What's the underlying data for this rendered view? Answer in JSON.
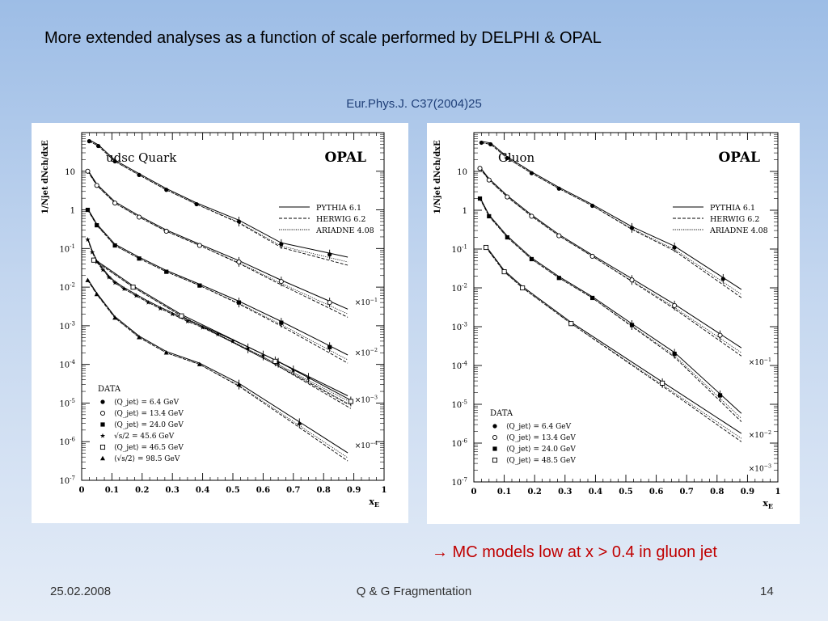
{
  "slide": {
    "title": "More extended analyses as a function of scale performed by DELPHI & OPAL",
    "citation": "Eur.Phys.J. C37(2004)25",
    "conclusion": "→ MC models low at x > 0.4 in gluon jet",
    "footer_date": "25.02.2008",
    "footer_center": "Q & G Fragmentation",
    "footer_page": "14"
  },
  "chart_data": [
    {
      "type": "scatter",
      "panel_label": "udsc Quark",
      "experiment_label": "OPAL",
      "xlabel": "x_E",
      "ylabel": "1/N_jet dN_ch/dx_E",
      "xlim": [
        0,
        1
      ],
      "ylim": [
        1e-07,
        100
      ],
      "yscale": "log",
      "x_ticks": [
        "0",
        "0.1",
        "0.2",
        "0.3",
        "0.4",
        "0.5",
        "0.6",
        "0.7",
        "0.8",
        "0.9",
        "1"
      ],
      "y_ticks": [
        {
          "v": 10.0,
          "label": "10"
        },
        {
          "v": 1.0,
          "label": "1"
        },
        {
          "v": 0.1,
          "label": "10",
          "exp": "-1"
        },
        {
          "v": 0.01,
          "label": "10",
          "exp": "-2"
        },
        {
          "v": 0.001,
          "label": "10",
          "exp": "-3"
        },
        {
          "v": 0.0001,
          "label": "10",
          "exp": "-4"
        },
        {
          "v": 1e-05,
          "label": "10",
          "exp": "-5"
        },
        {
          "v": 1e-06,
          "label": "10",
          "exp": "-6"
        },
        {
          "v": 1e-07,
          "label": "10",
          "exp": "-7"
        }
      ],
      "mc_legend": [
        "PYTHIA 6.1",
        "HERWIG 6.2",
        "ARIADNE 4.08"
      ],
      "data_legend_title": "DATA",
      "series": [
        {
          "name": "⟨Q_jet⟩ = 6.4 GeV",
          "marker": "dot",
          "x": [
            0.025,
            0.055,
            0.11,
            0.19,
            0.28,
            0.38,
            0.52,
            0.66,
            0.82
          ],
          "y": [
            60,
            45,
            18,
            8,
            3.3,
            1.4,
            0.5,
            0.13,
            0.07
          ]
        },
        {
          "name": "⟨Q_jet⟩ = 13.4 GeV",
          "marker": "circle",
          "x": [
            0.02,
            0.05,
            0.11,
            0.19,
            0.28,
            0.39,
            0.52,
            0.66,
            0.82
          ],
          "y": [
            10,
            4.3,
            1.5,
            0.65,
            0.28,
            0.12,
            0.045,
            0.014,
            0.004
          ]
        },
        {
          "name": "⟨Q_jet⟩ = 24.0 GeV",
          "marker": "square",
          "x": [
            0.02,
            0.05,
            0.11,
            0.19,
            0.28,
            0.39,
            0.52,
            0.66,
            0.82
          ],
          "y": [
            1.0,
            0.4,
            0.12,
            0.055,
            0.025,
            0.011,
            0.004,
            0.0012,
            0.00028
          ]
        },
        {
          "name": "√s/2 = 45.6 GeV",
          "marker": "star",
          "x": [
            0.02,
            0.035,
            0.05,
            0.07,
            0.09,
            0.11,
            0.14,
            0.18,
            0.22,
            0.26,
            0.3,
            0.35,
            0.4,
            0.45,
            0.5,
            0.55,
            0.6,
            0.65,
            0.7,
            0.75
          ],
          "y": [
            0.17,
            0.08,
            0.045,
            0.028,
            0.018,
            0.013,
            0.009,
            0.006,
            0.004,
            0.0028,
            0.002,
            0.0013,
            0.0009,
            0.0006,
            0.0004,
            0.00026,
            0.00017,
            0.00011,
            7e-05,
            4.5e-05
          ]
        },
        {
          "name": "⟨Q_jet⟩ = 46.5 GeV",
          "marker": "open-square",
          "x": [
            0.04,
            0.17,
            0.33,
            0.64,
            0.89
          ],
          "y": [
            0.05,
            0.01,
            0.0018,
            0.00012,
            1.1e-05
          ]
        },
        {
          "name": "⟨√s/2⟩ = 98.5 GeV",
          "marker": "triangle",
          "x": [
            0.02,
            0.05,
            0.11,
            0.19,
            0.28,
            0.39,
            0.52,
            0.72
          ],
          "y": [
            0.015,
            0.0065,
            0.0016,
            0.0005,
            0.0002,
            0.0001,
            3e-05,
            3e-06
          ]
        }
      ],
      "scale_labels": [
        {
          "text": "×10",
          "exp": "−1",
          "y": 0.004
        },
        {
          "text": "×10",
          "exp": "−2",
          "y": 0.0002
        },
        {
          "text": "×10",
          "exp": "−3",
          "y": 1.2e-05
        },
        {
          "text": "×10",
          "exp": "−4",
          "y": 8e-07
        }
      ]
    },
    {
      "type": "scatter",
      "panel_label": "Gluon",
      "experiment_label": "OPAL",
      "xlabel": "x_E",
      "ylabel": "1/N_jet dN_ch/dx_E",
      "xlim": [
        0,
        1
      ],
      "ylim": [
        1e-07,
        100
      ],
      "yscale": "log",
      "x_ticks": [
        "0",
        "0.1",
        "0.2",
        "0.3",
        "0.4",
        "0.5",
        "0.6",
        "0.7",
        "0.8",
        "0.9",
        "1"
      ],
      "y_ticks": [
        {
          "v": 10.0,
          "label": "10"
        },
        {
          "v": 1.0,
          "label": "1"
        },
        {
          "v": 0.1,
          "label": "10",
          "exp": "-1"
        },
        {
          "v": 0.01,
          "label": "10",
          "exp": "-2"
        },
        {
          "v": 0.001,
          "label": "10",
          "exp": "-3"
        },
        {
          "v": 0.0001,
          "label": "10",
          "exp": "-4"
        },
        {
          "v": 1e-05,
          "label": "10",
          "exp": "-5"
        },
        {
          "v": 1e-06,
          "label": "10",
          "exp": "-6"
        },
        {
          "v": 1e-07,
          "label": "10",
          "exp": "-7"
        }
      ],
      "mc_legend": [
        "PYTHIA 6.1",
        "HERWIG 6.2",
        "ARIADNE 4.08"
      ],
      "data_legend_title": "DATA",
      "series": [
        {
          "name": "⟨Q_jet⟩ = 6.4 GeV",
          "marker": "dot",
          "x": [
            0.025,
            0.055,
            0.11,
            0.19,
            0.28,
            0.39,
            0.52,
            0.66,
            0.82
          ],
          "y": [
            55,
            50,
            22,
            9,
            3.6,
            1.3,
            0.35,
            0.11,
            0.017
          ]
        },
        {
          "name": "⟨Q_jet⟩ = 13.4 GeV",
          "marker": "circle",
          "x": [
            0.02,
            0.05,
            0.11,
            0.19,
            0.28,
            0.39,
            0.52,
            0.66,
            0.81
          ],
          "y": [
            12,
            6,
            2.2,
            0.7,
            0.22,
            0.065,
            0.016,
            0.0035,
            0.0006
          ]
        },
        {
          "name": "⟨Q_jet⟩ = 24.0 GeV",
          "marker": "square",
          "x": [
            0.02,
            0.05,
            0.11,
            0.19,
            0.28,
            0.39,
            0.52,
            0.66,
            0.81
          ],
          "y": [
            2,
            0.7,
            0.2,
            0.055,
            0.018,
            0.0055,
            0.0011,
            0.0002,
            1.7e-05
          ]
        },
        {
          "name": "⟨Q_jet⟩ = 48.5 GeV",
          "marker": "open-square",
          "x": [
            0.04,
            0.1,
            0.16,
            0.32,
            0.62
          ],
          "y": [
            0.11,
            0.026,
            0.01,
            0.0012,
            3.5e-05
          ]
        }
      ],
      "scale_labels": [
        {
          "text": "×10",
          "exp": "−1",
          "y": 0.00012
        },
        {
          "text": "×10",
          "exp": "−2",
          "y": 1.6e-06
        },
        {
          "text": "×10",
          "exp": "−3",
          "y": 2.2e-07
        }
      ]
    }
  ]
}
